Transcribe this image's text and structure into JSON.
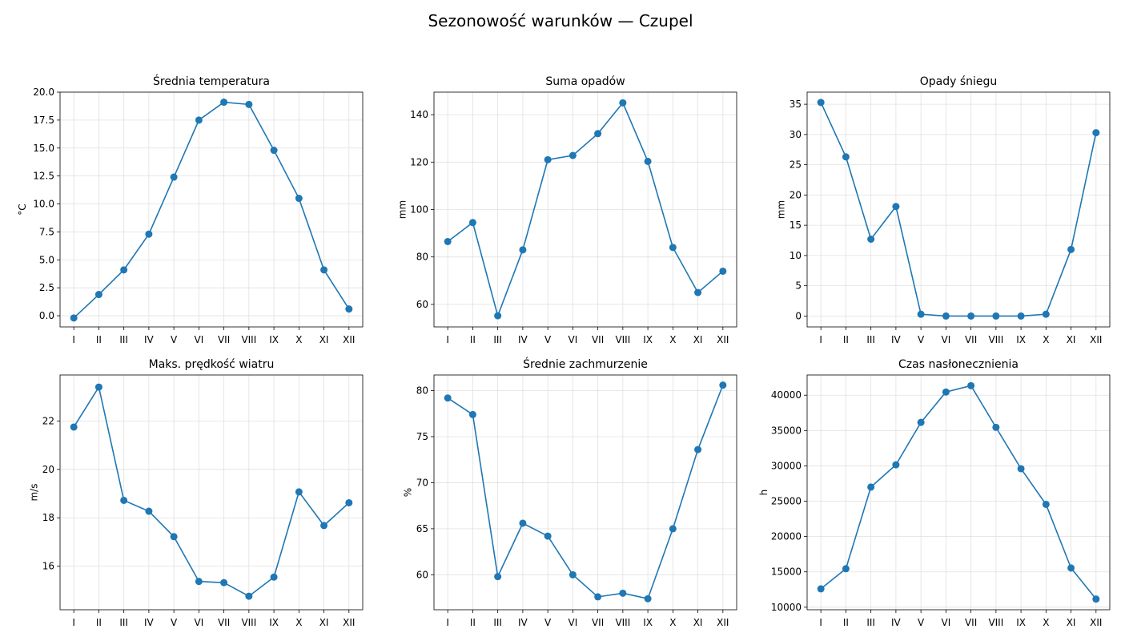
{
  "figure": {
    "title": "Sezonowość warunków — Czupel"
  },
  "style": {
    "line_color": "#1f77b4",
    "grid_color": "#e0e0e0",
    "axis_color": "#000000"
  },
  "chart_data": [
    {
      "type": "line",
      "title": "Średnia temperatura",
      "xlabel": "",
      "ylabel": "°C",
      "categories": [
        "I",
        "II",
        "III",
        "IV",
        "V",
        "VI",
        "VII",
        "VIII",
        "IX",
        "X",
        "XI",
        "XII"
      ],
      "values": [
        -0.2,
        1.9,
        4.1,
        7.3,
        12.4,
        17.5,
        19.1,
        18.9,
        14.8,
        10.5,
        4.1,
        0.6
      ],
      "ylim": [
        -1.0,
        20.0
      ],
      "yticks": [
        0.0,
        2.5,
        5.0,
        7.5,
        10.0,
        12.5,
        15.0,
        17.5,
        20.0
      ],
      "ytick_labels": [
        "0.0",
        "2.5",
        "5.0",
        "7.5",
        "10.0",
        "12.5",
        "15.0",
        "17.5",
        "20.0"
      ],
      "grid": true
    },
    {
      "type": "line",
      "title": "Suma opadów",
      "xlabel": "",
      "ylabel": "mm",
      "categories": [
        "I",
        "II",
        "III",
        "IV",
        "V",
        "VI",
        "VII",
        "VIII",
        "IX",
        "X",
        "XI",
        "XII"
      ],
      "values": [
        86.5,
        94.5,
        55.2,
        83.0,
        121.0,
        122.8,
        132.0,
        145.0,
        120.3,
        84.0,
        65.0,
        74.0
      ],
      "ylim": [
        50.5,
        149.5
      ],
      "yticks": [
        60,
        80,
        100,
        120,
        140
      ],
      "ytick_labels": [
        "60",
        "80",
        "100",
        "120",
        "140"
      ],
      "grid": true
    },
    {
      "type": "line",
      "title": "Opady śniegu",
      "xlabel": "",
      "ylabel": "mm",
      "categories": [
        "I",
        "II",
        "III",
        "IV",
        "V",
        "VI",
        "VII",
        "VIII",
        "IX",
        "X",
        "XI",
        "XII"
      ],
      "values": [
        35.3,
        26.3,
        12.7,
        18.1,
        0.3,
        0.0,
        0.0,
        0.0,
        0.0,
        0.3,
        11.0,
        30.3
      ],
      "ylim": [
        -1.8,
        37.0
      ],
      "yticks": [
        0,
        5,
        10,
        15,
        20,
        25,
        30,
        35
      ],
      "ytick_labels": [
        "0",
        "5",
        "10",
        "15",
        "20",
        "25",
        "30",
        "35"
      ],
      "grid": true
    },
    {
      "type": "line",
      "title": "Maks. prędkość wiatru",
      "xlabel": "",
      "ylabel": "m/s",
      "categories": [
        "I",
        "II",
        "III",
        "IV",
        "V",
        "VI",
        "VII",
        "VIII",
        "IX",
        "X",
        "XI",
        "XII"
      ],
      "values": [
        21.75,
        23.4,
        18.72,
        18.27,
        17.22,
        15.37,
        15.32,
        14.76,
        15.55,
        19.07,
        17.68,
        18.62
      ],
      "ylim": [
        14.2,
        23.9
      ],
      "yticks": [
        16,
        18,
        20,
        22
      ],
      "ytick_labels": [
        "16",
        "18",
        "20",
        "22"
      ],
      "grid": true
    },
    {
      "type": "line",
      "title": "Średnie zachmurzenie",
      "xlabel": "",
      "ylabel": "%",
      "categories": [
        "I",
        "II",
        "III",
        "IV",
        "V",
        "VI",
        "VII",
        "VIII",
        "IX",
        "X",
        "XI",
        "XII"
      ],
      "values": [
        79.2,
        77.4,
        59.8,
        65.6,
        64.2,
        60.0,
        57.6,
        58.0,
        57.4,
        65.0,
        73.6,
        80.6
      ],
      "ylim": [
        56.2,
        81.7
      ],
      "yticks": [
        60,
        65,
        70,
        75,
        80
      ],
      "ytick_labels": [
        "60",
        "65",
        "70",
        "75",
        "80"
      ],
      "grid": true
    },
    {
      "type": "line",
      "title": "Czas nasłonecznienia",
      "xlabel": "",
      "ylabel": "h",
      "categories": [
        "I",
        "II",
        "III",
        "IV",
        "V",
        "VI",
        "VII",
        "VIII",
        "IX",
        "X",
        "XI",
        "XII"
      ],
      "values": [
        12600,
        15450,
        27000,
        30150,
        36150,
        40450,
        41350,
        35450,
        29600,
        24550,
        15550,
        11150
      ],
      "ylim": [
        9640,
        42860
      ],
      "yticks": [
        10000,
        15000,
        20000,
        25000,
        30000,
        35000,
        40000
      ],
      "ytick_labels": [
        "10000",
        "15000",
        "20000",
        "25000",
        "30000",
        "35000",
        "40000"
      ],
      "grid": true
    }
  ]
}
